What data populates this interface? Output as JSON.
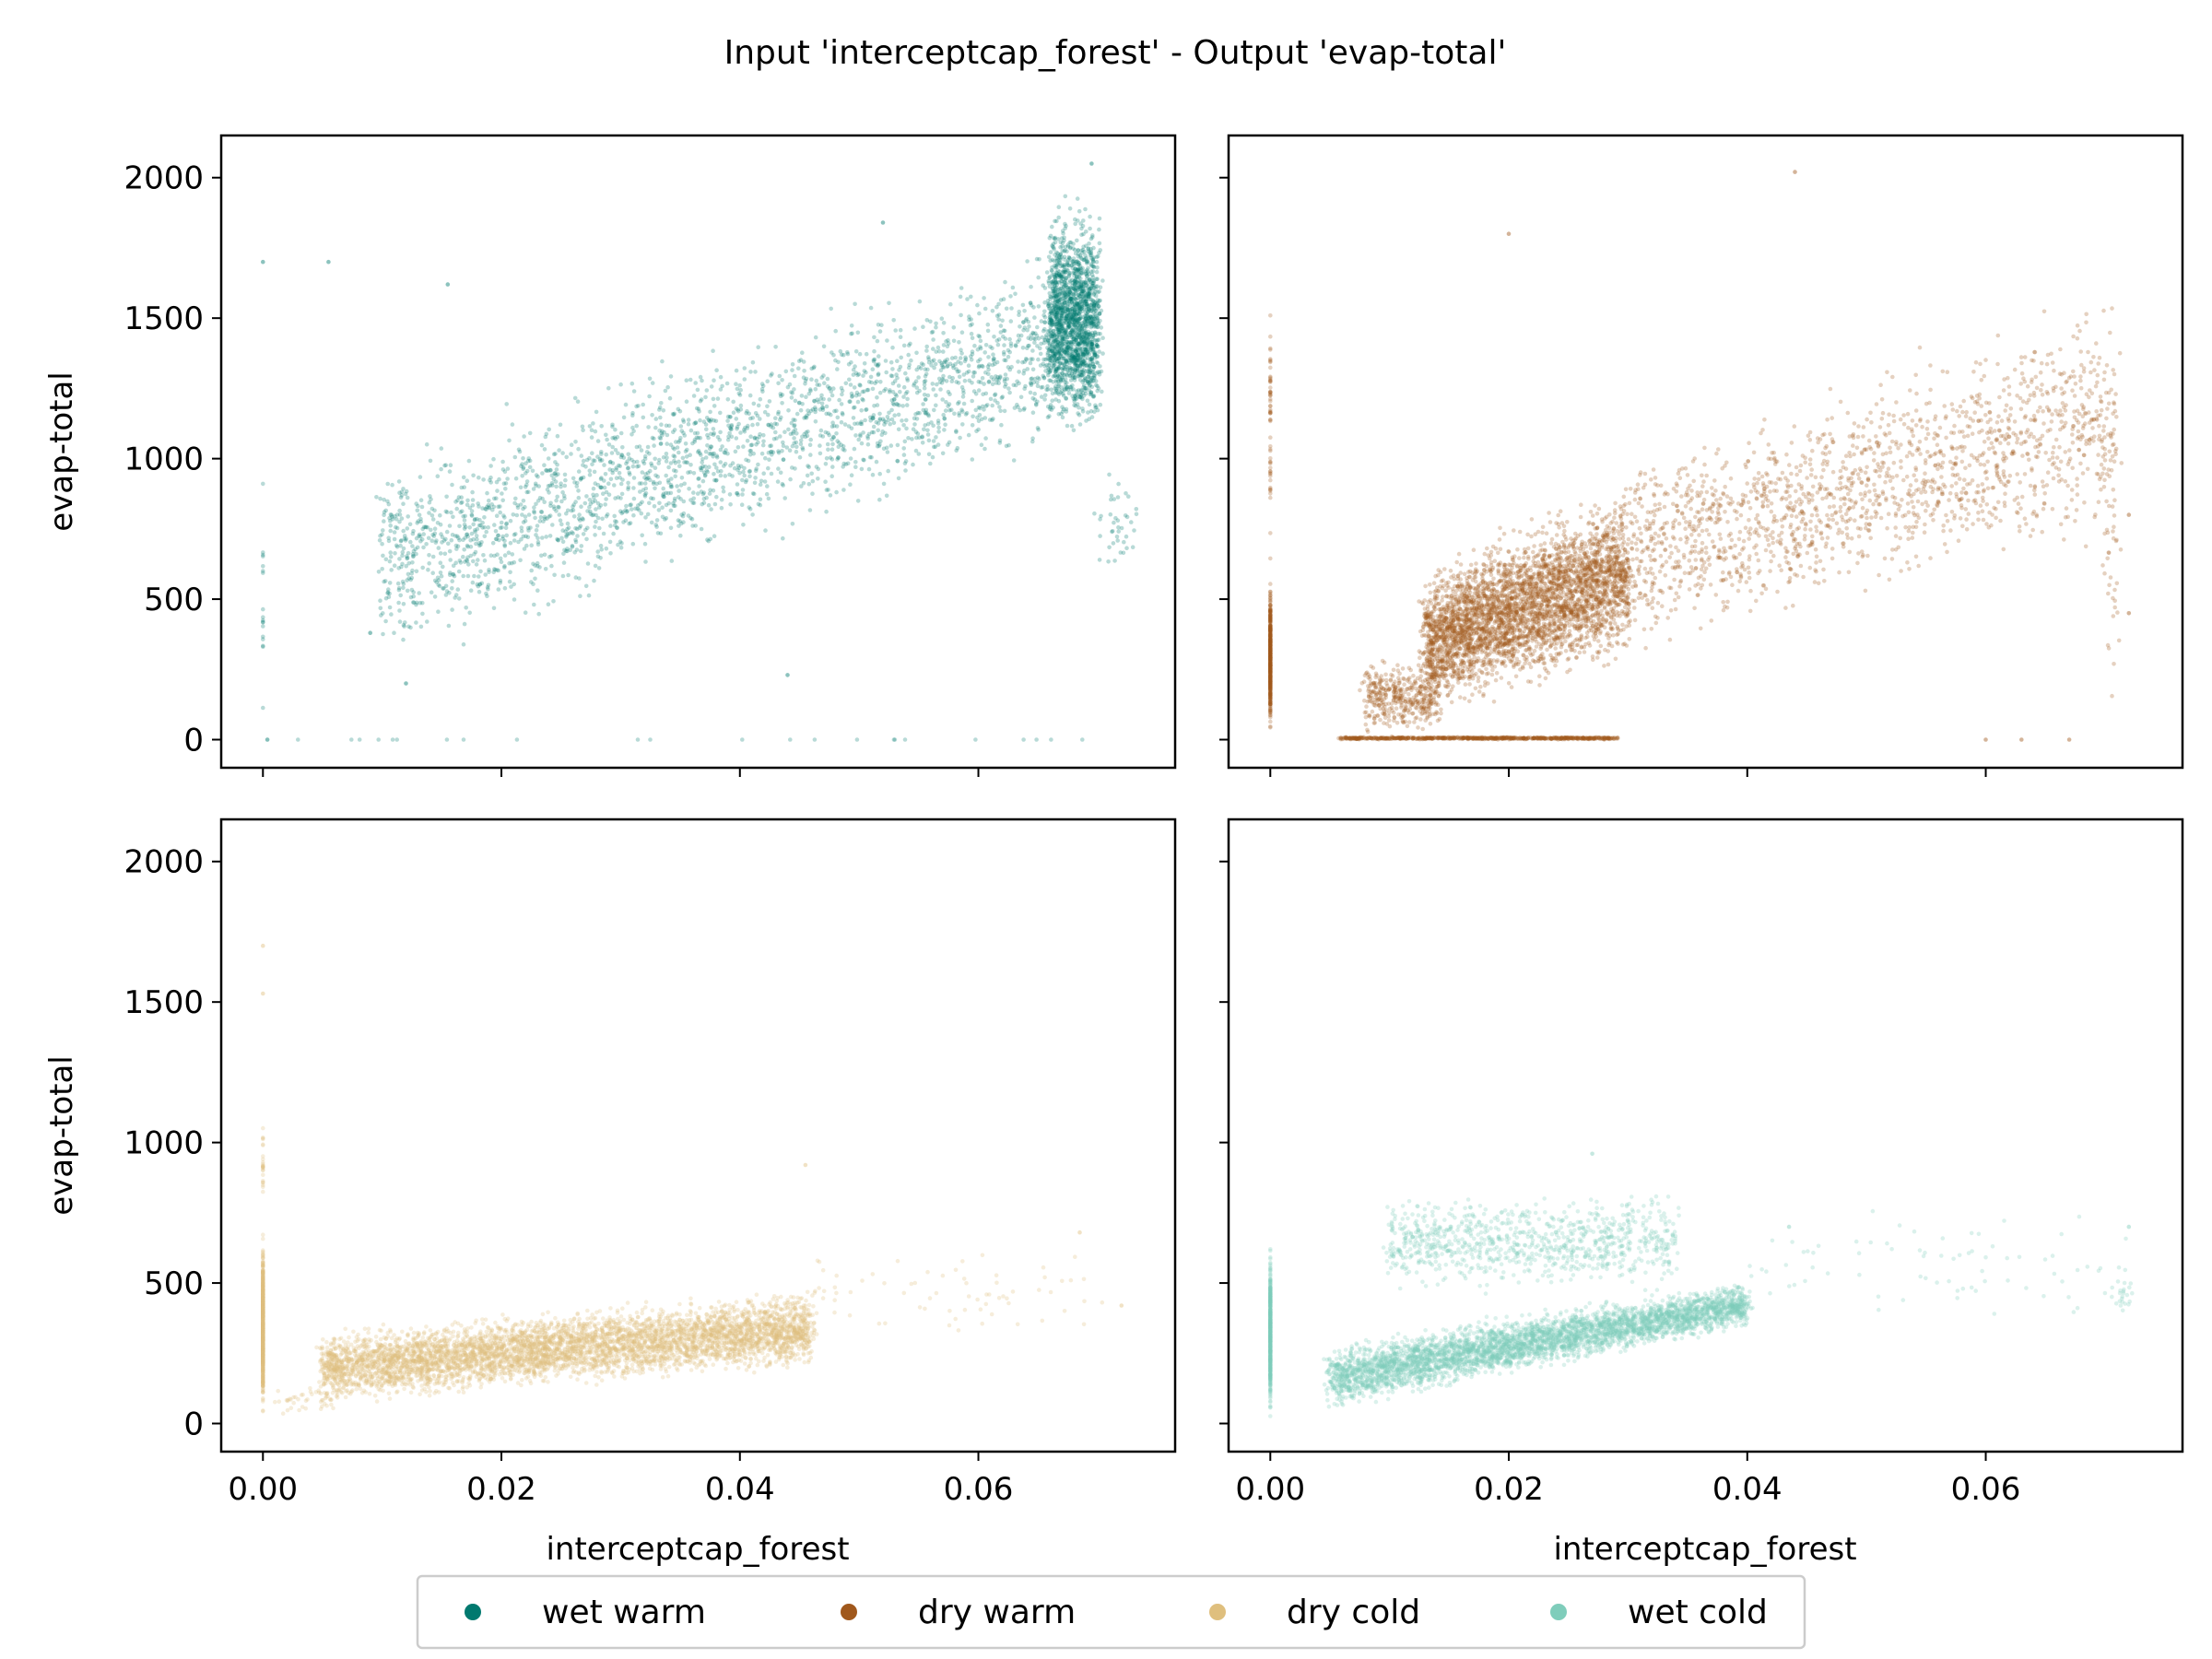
{
  "figure": {
    "title": "Input 'interceptcap_forest' - Output 'evap-total'"
  },
  "colors": {
    "wet_warm": "#01796f",
    "dry_warm": "#a0581c",
    "dry_cold": "#dfbf7e",
    "wet_cold": "#7fcdbb",
    "axis": "#000000",
    "legend_border": "#cccccc"
  },
  "legend": {
    "placement": "bottom-center",
    "entries": [
      {
        "label": "wet warm",
        "color": "#01796f"
      },
      {
        "label": "dry warm",
        "color": "#a0581c"
      },
      {
        "label": "dry cold",
        "color": "#dfbf7e"
      },
      {
        "label": "wet cold",
        "color": "#7fcdbb"
      }
    ]
  },
  "chart_data": [
    {
      "type": "scatter",
      "name": "wet warm",
      "color": "#01796f",
      "xlabel": "",
      "ylabel": "evap-total",
      "xlim": [
        -0.0035,
        0.0765
      ],
      "ylim": [
        -100,
        2150
      ],
      "xticks": [
        0.0,
        0.02,
        0.04,
        0.06
      ],
      "xtick_labels": [],
      "yticks": [
        0,
        500,
        1000,
        1500,
        2000
      ],
      "ytick_labels": [
        "0",
        "500",
        "1000",
        "1500",
        "2000"
      ],
      "clusters": [
        {
          "x": [
            0.01,
            0.07
          ],
          "y_start": [
            200,
            1100
          ],
          "y_end": [
            1050,
            1850
          ],
          "n": 2600
        },
        {
          "x": [
            0.066,
            0.07
          ],
          "y_start": [
            1050,
            1950
          ],
          "y_end": [
            1050,
            1950
          ],
          "n": 1500
        },
        {
          "x": [
            0.0,
            0.0
          ],
          "y_start": [
            0,
            1050
          ],
          "y_end": [
            0,
            1050
          ],
          "n": 18
        },
        {
          "x": [
            0.0,
            0.07
          ],
          "y_start": [
            0,
            0
          ],
          "y_end": [
            0,
            0
          ],
          "n": 25
        },
        {
          "x": [
            0.07,
            0.073
          ],
          "y_start": [
            500,
            1000
          ],
          "y_end": [
            500,
            1000
          ],
          "n": 40
        }
      ],
      "points": [
        {
          "x": 0.0,
          "y": 1700
        },
        {
          "x": 0.0055,
          "y": 1700
        },
        {
          "x": 0.044,
          "y": 230
        },
        {
          "x": 0.009,
          "y": 380
        },
        {
          "x": 0.012,
          "y": 200
        },
        {
          "x": 0.0155,
          "y": 1620
        },
        {
          "x": 0.052,
          "y": 1840
        },
        {
          "x": 0.0695,
          "y": 2050
        }
      ]
    },
    {
      "type": "scatter",
      "name": "dry warm",
      "color": "#a0581c",
      "xlabel": "",
      "ylabel": "",
      "xlim": [
        -0.0035,
        0.0765
      ],
      "ylim": [
        -100,
        2150
      ],
      "xticks": [
        0.0,
        0.02,
        0.04,
        0.06
      ],
      "xtick_labels": [],
      "yticks": [
        0,
        500,
        1000,
        1500,
        2000
      ],
      "ytick_labels": [],
      "clusters": [
        {
          "x": [
            0.013,
            0.03
          ],
          "y_start": [
            50,
            650
          ],
          "y_end": [
            250,
            950
          ],
          "n": 3800
        },
        {
          "x": [
            0.03,
            0.071
          ],
          "y_start": [
            250,
            1050
          ],
          "y_end": [
            650,
            1650
          ],
          "n": 1700
        },
        {
          "x": [
            0.0,
            0.0
          ],
          "y_start": [
            0,
            600
          ],
          "y_end": [
            0,
            600
          ],
          "n": 500
        },
        {
          "x": [
            0.0,
            0.0
          ],
          "y_start": [
            600,
            1650
          ],
          "y_end": [
            600,
            1650
          ],
          "n": 60
        },
        {
          "x": [
            0.006,
            0.029
          ],
          "y_start": [
            0,
            10
          ],
          "y_end": [
            0,
            10
          ],
          "n": 700
        },
        {
          "x": [
            0.008,
            0.014
          ],
          "y_start": [
            0,
            300
          ],
          "y_end": [
            0,
            300
          ],
          "n": 400
        },
        {
          "x": [
            0.07,
            0.071
          ],
          "y_start": [
            0,
            1450
          ],
          "y_end": [
            0,
            1450
          ],
          "n": 40
        }
      ],
      "points": [
        {
          "x": 0.044,
          "y": 2020
        },
        {
          "x": 0.02,
          "y": 1800
        },
        {
          "x": 0.072,
          "y": 800
        },
        {
          "x": 0.072,
          "y": 450
        },
        {
          "x": 0.06,
          "y": 0
        },
        {
          "x": 0.063,
          "y": 0
        },
        {
          "x": 0.067,
          "y": 0
        }
      ]
    },
    {
      "type": "scatter",
      "name": "dry cold",
      "color": "#dfbf7e",
      "xlabel": "interceptcap_forest",
      "ylabel": "evap-total",
      "xlim": [
        -0.0035,
        0.0765
      ],
      "ylim": [
        -100,
        2150
      ],
      "xticks": [
        0.0,
        0.02,
        0.04,
        0.06
      ],
      "xtick_labels": [
        "0.00",
        "0.02",
        "0.04",
        "0.06"
      ],
      "yticks": [
        0,
        500,
        1000,
        1500,
        2000
      ],
      "yticks_labels_note": "",
      "ytick_labels": [
        "0",
        "500",
        "1000",
        "1500",
        "2000"
      ],
      "clusters": [
        {
          "x": [
            0.005,
            0.046
          ],
          "y_start": [
            50,
            350
          ],
          "y_end": [
            180,
            500
          ],
          "n": 5200
        },
        {
          "x": [
            0.0,
            0.0
          ],
          "y_start": [
            0,
            700
          ],
          "y_end": [
            0,
            700
          ],
          "n": 700
        },
        {
          "x": [
            0.0,
            0.0
          ],
          "y_start": [
            700,
            1100
          ],
          "y_end": [
            700,
            1100
          ],
          "n": 25
        },
        {
          "x": [
            0.046,
            0.07
          ],
          "y_start": [
            250,
            650
          ],
          "y_end": [
            250,
            650
          ],
          "n": 70
        },
        {
          "x": [
            0.001,
            0.006
          ],
          "y_start": [
            20,
            150
          ],
          "y_end": [
            20,
            150
          ],
          "n": 40
        }
      ],
      "points": [
        {
          "x": 0.0,
          "y": 1700
        },
        {
          "x": 0.0,
          "y": 1530
        },
        {
          "x": 0.072,
          "y": 420
        },
        {
          "x": 0.0685,
          "y": 680
        },
        {
          "x": 0.0455,
          "y": 920
        }
      ]
    },
    {
      "type": "scatter",
      "name": "wet cold",
      "color": "#7fcdbb",
      "xlabel": "interceptcap_forest",
      "ylabel": "",
      "xlim": [
        -0.0035,
        0.0765
      ],
      "ylim": [
        -100,
        2150
      ],
      "xticks": [
        0.0,
        0.02,
        0.04,
        0.06
      ],
      "xtick_labels": [
        "0.00",
        "0.02",
        "0.04",
        "0.06"
      ],
      "yticks": [
        0,
        500,
        1000,
        1500,
        2000
      ],
      "ytick_labels": [],
      "clusters": [
        {
          "x": [
            0.005,
            0.04
          ],
          "y_start": [
            30,
            300
          ],
          "y_end": [
            330,
            520
          ],
          "n": 4200
        },
        {
          "x": [
            0.01,
            0.034
          ],
          "y_start": [
            450,
            850
          ],
          "y_end": [
            450,
            850
          ],
          "n": 900
        },
        {
          "x": [
            0.0,
            0.0
          ],
          "y_start": [
            0,
            650
          ],
          "y_end": [
            0,
            650
          ],
          "n": 500
        },
        {
          "x": [
            0.04,
            0.072
          ],
          "y_start": [
            300,
            800
          ],
          "y_end": [
            300,
            800
          ],
          "n": 80
        },
        {
          "x": [
            0.071,
            0.072
          ],
          "y_start": [
            350,
            550
          ],
          "y_end": [
            350,
            550
          ],
          "n": 20
        }
      ],
      "points": [
        {
          "x": 0.072,
          "y": 700
        },
        {
          "x": 0.0435,
          "y": 700
        },
        {
          "x": 0.027,
          "y": 960
        }
      ]
    }
  ]
}
